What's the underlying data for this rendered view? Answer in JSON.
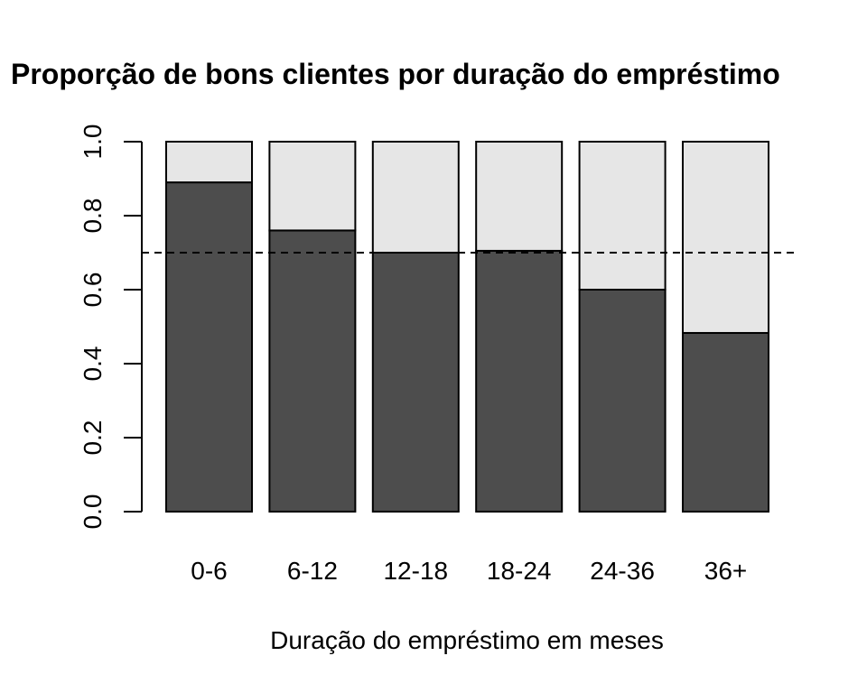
{
  "chart_data": {
    "type": "bar",
    "stacked": true,
    "title": "Proporção de bons clientes por duração do empréstimo",
    "xlabel": "Duração do empréstimo em meses",
    "ylabel": "",
    "ylim": [
      0,
      1
    ],
    "yticks": [
      "0.0",
      "0.2",
      "0.4",
      "0.6",
      "0.8",
      "1.0"
    ],
    "categories": [
      "0-6",
      "6-12",
      "12-18",
      "18-24",
      "24-36",
      "36+"
    ],
    "series": [
      {
        "values": [
          0.89,
          0.76,
          0.7,
          0.705,
          0.6,
          0.483
        ],
        "color": "#4d4d4d"
      },
      {
        "values": [
          0.11,
          0.24,
          0.3,
          0.295,
          0.4,
          0.517
        ],
        "color": "#e6e6e6"
      }
    ],
    "reference_line": {
      "y": 0.7,
      "style": "dashed",
      "color": "#000000"
    },
    "grid": false,
    "legend": "none"
  }
}
